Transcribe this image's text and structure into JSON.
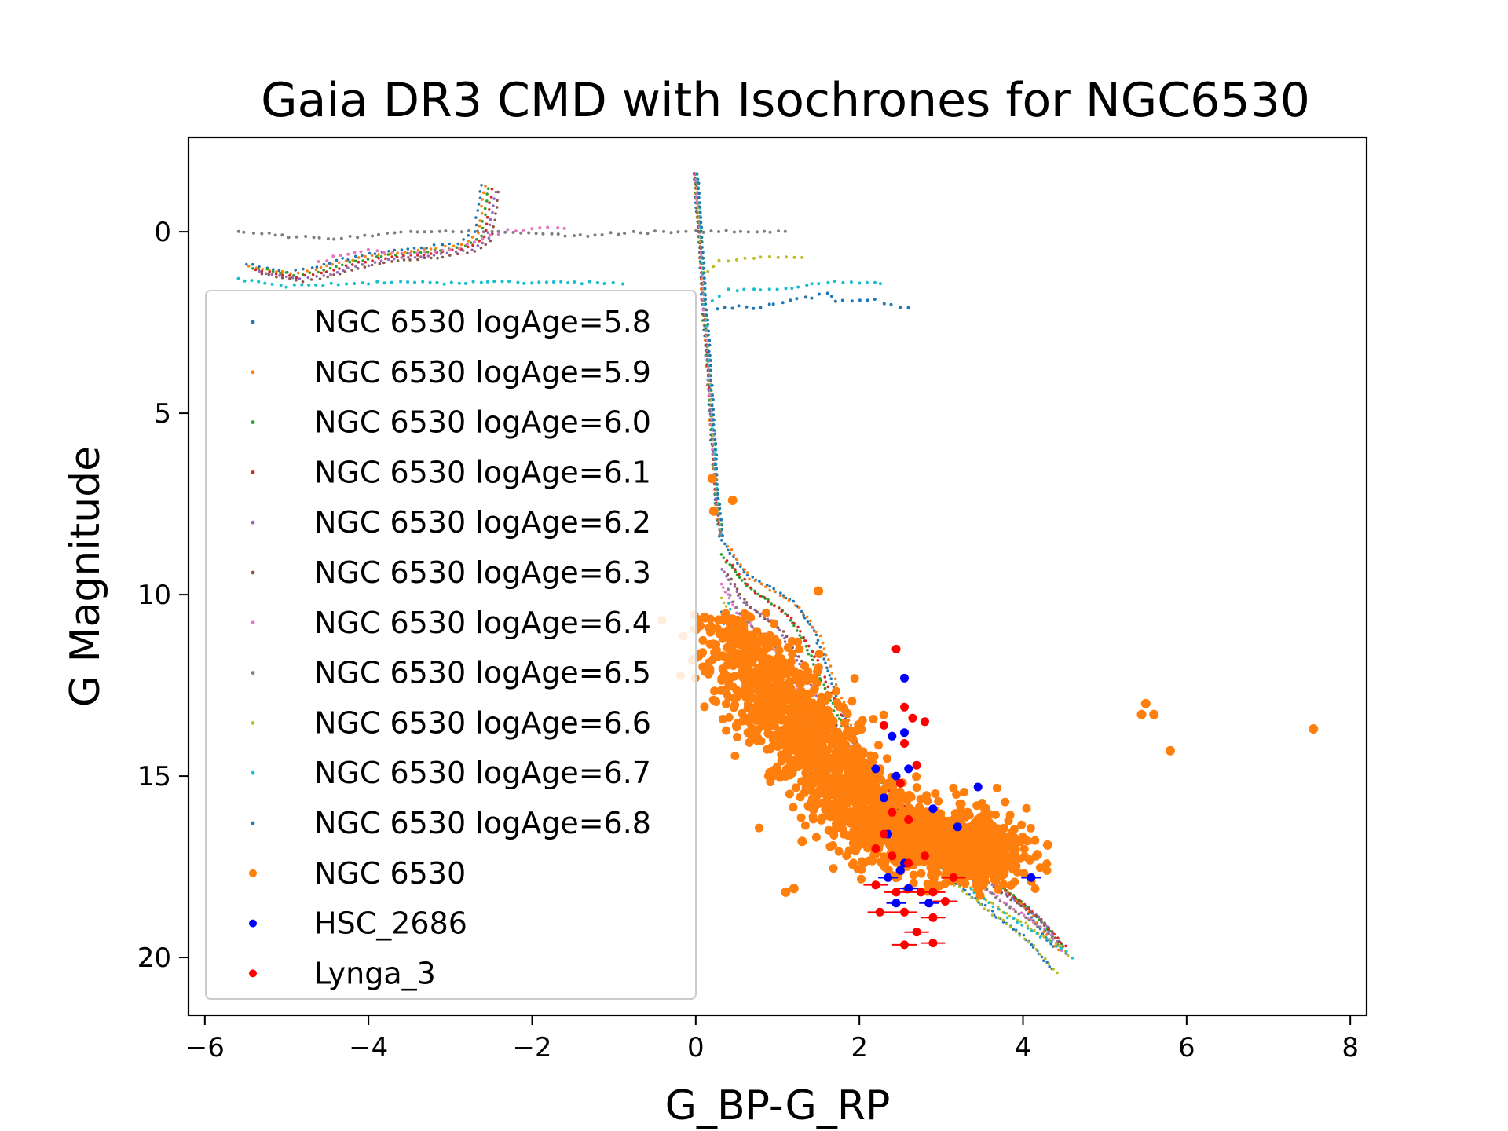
{
  "chart_data": {
    "type": "scatter",
    "title": "Gaia DR3 CMD with Isochrones for NGC6530",
    "xlabel": "G_BP-G_RP",
    "ylabel": "G Magnitude",
    "xlim": [
      -6.2,
      8.2
    ],
    "ylim": [
      21.6,
      -2.6
    ],
    "y_inverted": true,
    "x_ticks": [
      -6,
      -4,
      -2,
      0,
      2,
      4,
      6,
      8
    ],
    "x_tick_labels": [
      "−6",
      "−4",
      "−2",
      "0",
      "2",
      "4",
      "6",
      "8"
    ],
    "y_ticks": [
      0,
      5,
      10,
      15,
      20
    ],
    "y_tick_labels": [
      "0",
      "5",
      "10",
      "15",
      "20"
    ],
    "grid": false,
    "legend_position": "left",
    "isochrones": [
      {
        "name": "NGC 6530 logAge=5.8",
        "color": "#1f77b4",
        "logAge": 5.8
      },
      {
        "name": "NGC 6530 logAge=5.9",
        "color": "#ff7f0e",
        "logAge": 5.9
      },
      {
        "name": "NGC 6530 logAge=6.0",
        "color": "#2ca02c",
        "logAge": 6.0
      },
      {
        "name": "NGC 6530 logAge=6.1",
        "color": "#d62728",
        "logAge": 6.1
      },
      {
        "name": "NGC 6530 logAge=6.2",
        "color": "#9467bd",
        "logAge": 6.2
      },
      {
        "name": "NGC 6530 logAge=6.3",
        "color": "#8c564b",
        "logAge": 6.3
      },
      {
        "name": "NGC 6530 logAge=6.4",
        "color": "#e377c2",
        "logAge": 6.4
      },
      {
        "name": "NGC 6530 logAge=6.5",
        "color": "#7f7f7f",
        "logAge": 6.5
      },
      {
        "name": "NGC 6530 logAge=6.6",
        "color": "#bcbd22",
        "logAge": 6.6
      },
      {
        "name": "NGC 6530 logAge=6.7",
        "color": "#17becf",
        "logAge": 6.7
      },
      {
        "name": "NGC 6530 logAge=6.8",
        "color": "#1f77b4",
        "logAge": 6.8
      }
    ],
    "isochrone_main_sequence": [
      [
        0.0,
        -1.6
      ],
      [
        0.05,
        0.0
      ],
      [
        0.08,
        1.0
      ],
      [
        0.1,
        2.0
      ],
      [
        0.14,
        3.0
      ],
      [
        0.18,
        4.5
      ],
      [
        0.22,
        6.0
      ],
      [
        0.26,
        7.5
      ],
      [
        0.32,
        8.5
      ]
    ],
    "isochrone_red_tracks": [
      {
        "age": 5.8,
        "points": [
          [
            0.32,
            8.5
          ],
          [
            0.6,
            9.4
          ],
          [
            1.2,
            10.2
          ],
          [
            1.45,
            11.0
          ],
          [
            1.6,
            12.0
          ],
          [
            1.75,
            13.0
          ],
          [
            2.0,
            14.5
          ],
          [
            2.4,
            15.8
          ],
          [
            3.0,
            16.9
          ],
          [
            3.6,
            17.7
          ],
          [
            4.0,
            18.6
          ],
          [
            4.4,
            19.8
          ]
        ]
      },
      {
        "age": 6.0,
        "points": [
          [
            0.32,
            8.9
          ],
          [
            0.6,
            9.7
          ],
          [
            1.1,
            10.5
          ],
          [
            1.35,
            11.4
          ],
          [
            1.55,
            12.4
          ],
          [
            1.8,
            13.6
          ],
          [
            2.2,
            15.0
          ],
          [
            2.8,
            16.5
          ],
          [
            3.5,
            17.6
          ],
          [
            4.1,
            18.7
          ],
          [
            4.5,
            19.7
          ]
        ]
      },
      {
        "age": 6.2,
        "points": [
          [
            0.32,
            9.3
          ],
          [
            0.55,
            10.1
          ],
          [
            1.0,
            10.9
          ],
          [
            1.25,
            11.8
          ],
          [
            1.5,
            12.9
          ],
          [
            1.8,
            14.0
          ],
          [
            2.2,
            15.3
          ],
          [
            2.8,
            16.7
          ],
          [
            3.5,
            17.8
          ],
          [
            4.2,
            18.9
          ],
          [
            4.5,
            19.8
          ]
        ]
      },
      {
        "age": 6.4,
        "points": [
          [
            0.32,
            9.7
          ],
          [
            0.5,
            10.5
          ],
          [
            0.9,
            11.3
          ],
          [
            1.15,
            12.2
          ],
          [
            1.45,
            13.3
          ],
          [
            1.8,
            14.5
          ],
          [
            2.3,
            15.8
          ],
          [
            2.9,
            17.0
          ],
          [
            3.6,
            18.2
          ],
          [
            4.3,
            19.3
          ],
          [
            4.5,
            19.9
          ]
        ]
      },
      {
        "age": 6.6,
        "points": [
          [
            0.32,
            10.1
          ],
          [
            0.45,
            10.9
          ],
          [
            0.8,
            11.8
          ],
          [
            1.05,
            12.7
          ],
          [
            1.4,
            13.8
          ],
          [
            1.8,
            15.0
          ],
          [
            2.4,
            16.3
          ],
          [
            3.0,
            17.5
          ],
          [
            3.8,
            18.8
          ],
          [
            4.4,
            19.6
          ],
          [
            4.6,
            20.0
          ]
        ]
      },
      {
        "age": 6.8,
        "points": [
          [
            0.32,
            10.5
          ],
          [
            0.4,
            11.4
          ],
          [
            0.7,
            12.3
          ],
          [
            1.0,
            13.3
          ],
          [
            1.4,
            14.4
          ],
          [
            1.9,
            15.7
          ],
          [
            2.6,
            17.0
          ],
          [
            3.3,
            18.2
          ],
          [
            4.0,
            19.4
          ],
          [
            4.4,
            20.4
          ]
        ]
      }
    ],
    "isochrone_blue_branch": [
      [
        -5.5,
        0.9
      ],
      [
        -5.0,
        1.1
      ],
      [
        -4.7,
        1.0
      ],
      [
        -4.4,
        0.8
      ],
      [
        -4.0,
        0.6
      ],
      [
        -3.6,
        0.5
      ],
      [
        -3.2,
        0.4
      ],
      [
        -2.9,
        0.3
      ],
      [
        -2.7,
        0.0
      ],
      [
        -2.6,
        -1.5
      ]
    ],
    "isochrone_upper_tracks": [
      {
        "color": "#7f7f7f",
        "points": [
          [
            -5.6,
            0.0
          ],
          [
            -4.5,
            0.2
          ],
          [
            -3.5,
            0.0
          ],
          [
            -2.5,
            0.0
          ],
          [
            -1.5,
            0.1
          ],
          [
            -0.5,
            0.0
          ],
          [
            0.1,
            0.0
          ],
          [
            1.2,
            0.0
          ]
        ]
      },
      {
        "color": "#e377c2",
        "points": [
          [
            -4.6,
            0.8
          ],
          [
            -4.0,
            0.5
          ],
          [
            -3.5,
            0.6
          ],
          [
            -3.0,
            0.5
          ],
          [
            -2.6,
            0.2
          ],
          [
            -2.3,
            0.0
          ],
          [
            -1.8,
            -0.1
          ],
          [
            -1.5,
            -0.1
          ]
        ]
      },
      {
        "color": "#17becf",
        "points": [
          [
            -5.6,
            1.3
          ],
          [
            -5.0,
            1.5
          ],
          [
            -4.0,
            1.4
          ],
          [
            -3.6,
            1.4
          ],
          [
            -1.3,
            1.4
          ],
          [
            -0.8,
            1.4
          ]
        ]
      },
      {
        "color": "#bcbd22",
        "points": [
          [
            0.15,
            1.1
          ],
          [
            0.3,
            0.8
          ],
          [
            0.8,
            0.7
          ],
          [
            1.4,
            0.7
          ]
        ]
      },
      {
        "color": "#17becf",
        "points": [
          [
            0.2,
            1.9
          ],
          [
            0.4,
            1.6
          ],
          [
            1.0,
            1.6
          ],
          [
            1.6,
            1.4
          ],
          [
            2.2,
            1.4
          ],
          [
            2.3,
            1.4
          ]
        ]
      },
      {
        "color": "#1f77b4",
        "points": [
          [
            0.25,
            2.1
          ],
          [
            0.7,
            2.1
          ],
          [
            1.6,
            1.7
          ],
          [
            1.7,
            1.9
          ],
          [
            2.2,
            1.9
          ],
          [
            2.5,
            2.1
          ],
          [
            2.7,
            2.1
          ]
        ]
      }
    ],
    "series": [
      {
        "name": "NGC 6530",
        "color": "#ff7f0e",
        "cluster_points": [
          [
            0.2,
            6.8
          ],
          [
            0.22,
            7.7
          ],
          [
            0.45,
            7.4
          ],
          [
            1.5,
            9.9
          ],
          [
            0.28,
            10.7
          ],
          [
            5.45,
            13.3
          ],
          [
            5.5,
            13.0
          ],
          [
            5.6,
            13.3
          ],
          [
            5.8,
            14.3
          ],
          [
            7.55,
            13.7
          ],
          [
            1.3,
            16.8
          ],
          [
            1.2,
            18.1
          ],
          [
            1.1,
            18.2
          ],
          [
            4.3,
            16.9
          ]
        ],
        "dense_region": {
          "description_core": [
            [
              0.4,
              11.0
            ],
            [
              0.8,
              12.5
            ],
            [
              1.2,
              13.5
            ],
            [
              1.6,
              14.5
            ],
            [
              2.0,
              15.8
            ],
            [
              2.4,
              16.5
            ],
            [
              2.8,
              16.8
            ],
            [
              3.3,
              17.0
            ],
            [
              3.8,
              17.2
            ]
          ]
        }
      },
      {
        "name": "HSC_2686",
        "color": "#0000ff",
        "points": [
          [
            2.55,
            12.3
          ],
          [
            2.4,
            13.9
          ],
          [
            2.55,
            13.8
          ],
          [
            2.2,
            14.8
          ],
          [
            2.45,
            15.0
          ],
          [
            2.6,
            14.8
          ],
          [
            3.45,
            15.3
          ],
          [
            2.3,
            15.6
          ],
          [
            2.9,
            15.9
          ],
          [
            3.2,
            16.4
          ],
          [
            2.35,
            16.6
          ],
          [
            2.55,
            17.4
          ],
          [
            2.5,
            17.6
          ],
          [
            2.35,
            17.8
          ],
          [
            2.6,
            18.1
          ],
          [
            2.45,
            18.5
          ],
          [
            2.85,
            18.5
          ],
          [
            4.1,
            17.8
          ]
        ]
      },
      {
        "name": "Lynga_3",
        "color": "#ff0000",
        "points": [
          [
            2.45,
            11.5
          ],
          [
            2.3,
            13.6
          ],
          [
            2.55,
            13.1
          ],
          [
            2.65,
            13.4
          ],
          [
            2.8,
            13.5
          ],
          [
            2.55,
            14.1
          ],
          [
            2.7,
            14.7
          ],
          [
            2.5,
            15.2
          ],
          [
            2.4,
            16.0
          ],
          [
            2.6,
            16.2
          ],
          [
            2.3,
            16.6
          ],
          [
            2.2,
            17.0
          ],
          [
            2.4,
            17.2
          ],
          [
            2.6,
            17.4
          ],
          [
            2.8,
            17.2
          ],
          [
            2.2,
            18.0
          ],
          [
            2.45,
            18.2
          ],
          [
            2.75,
            18.2
          ],
          [
            2.9,
            18.2
          ],
          [
            3.15,
            17.8
          ],
          [
            2.25,
            18.75
          ],
          [
            2.55,
            18.75
          ],
          [
            2.9,
            18.9
          ],
          [
            2.7,
            19.3
          ],
          [
            2.55,
            19.65
          ],
          [
            2.9,
            19.6
          ],
          [
            3.05,
            18.45
          ]
        ]
      }
    ]
  }
}
